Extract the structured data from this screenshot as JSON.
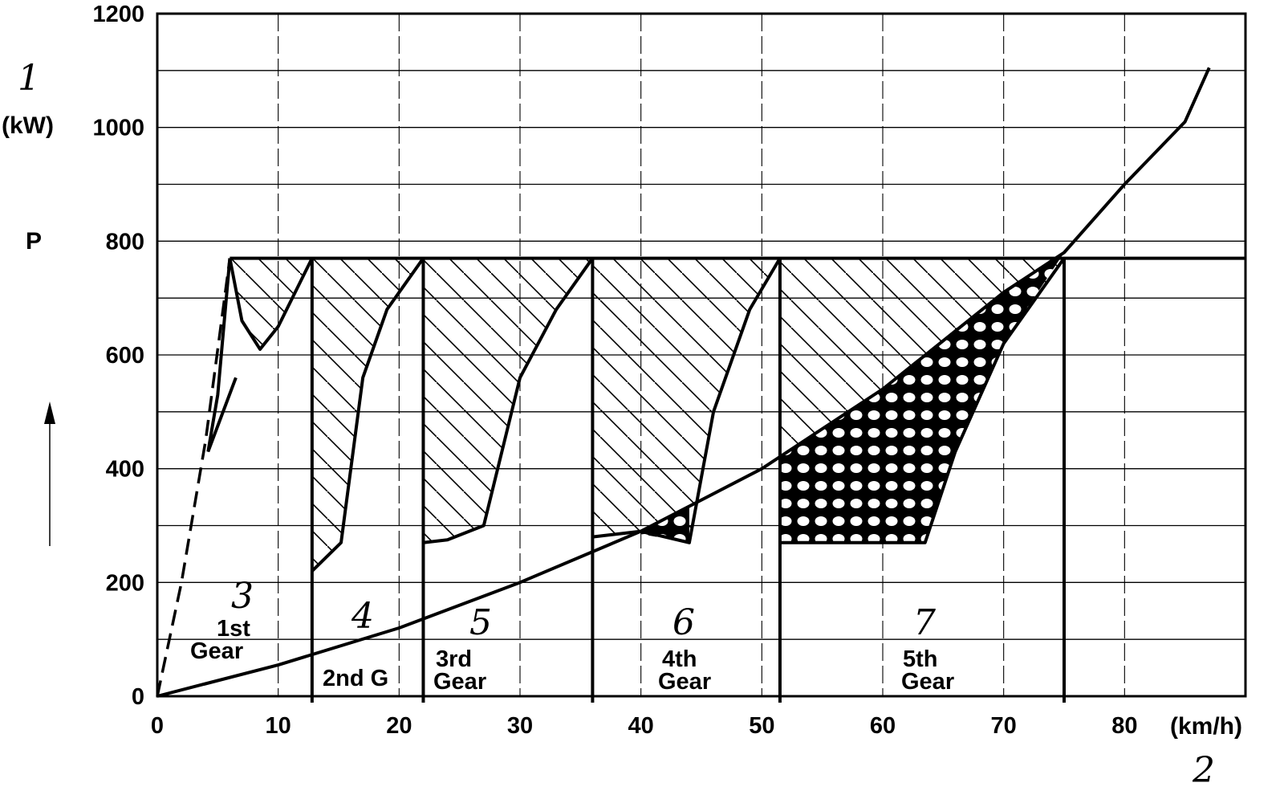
{
  "chart_data": {
    "type": "line",
    "ylabel_symbol": "P",
    "ylabel_unit": "(kW)",
    "xlabel_unit": "(km/h)",
    "xlim": [
      0,
      90
    ],
    "ylim": [
      0,
      1200
    ],
    "x_ticks": [
      "0",
      "10",
      "20",
      "30",
      "40",
      "50",
      "60",
      "70",
      "80"
    ],
    "y_ticks": [
      "0",
      "200",
      "400",
      "600",
      "800",
      "1000",
      "1200"
    ],
    "grid": true,
    "max_power_kw": 770,
    "annotations": {
      "ref_1": "1",
      "ref_2": "2",
      "ref_3": "3",
      "ref_4": "4",
      "ref_5": "5",
      "ref_6": "6",
      "ref_7": "7"
    },
    "gears": [
      {
        "label_line1": "1st",
        "label_line2": "Gear"
      },
      {
        "label_line1": "2nd G",
        "label_line2": ""
      },
      {
        "label_line1": "3rd",
        "label_line2": "Gear"
      },
      {
        "label_line1": "4th",
        "label_line2": "Gear"
      },
      {
        "label_line1": "5th",
        "label_line2": "Gear"
      }
    ],
    "gear_shift_speeds": [
      0,
      12.8,
      22,
      36,
      51.5,
      75
    ],
    "series": [
      {
        "style": "solid",
        "x": [
          0,
          10,
          20,
          30,
          40,
          50,
          60,
          70,
          75,
          80,
          85,
          87
        ],
        "y": [
          0,
          55,
          120,
          200,
          290,
          400,
          540,
          710,
          780,
          900,
          1010,
          1105
        ]
      },
      {
        "style": "dashed",
        "x": [
          0,
          2,
          4,
          6
        ],
        "y": [
          0,
          200,
          450,
          770
        ]
      }
    ]
  }
}
